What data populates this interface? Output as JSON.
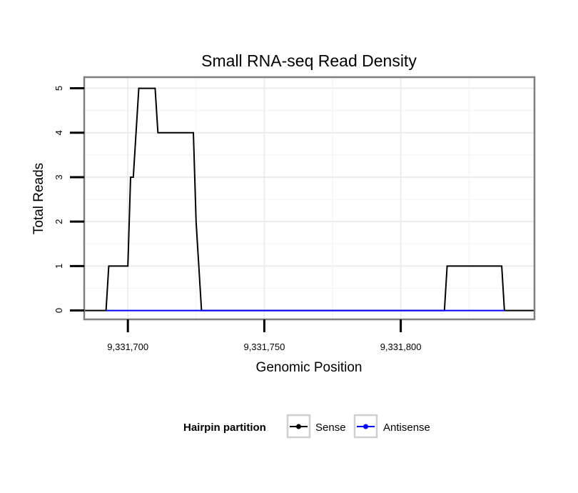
{
  "chart_data": {
    "type": "line",
    "title": "Small RNA-seq Read Density",
    "xlabel": "Genomic Position",
    "ylabel": "Total Reads",
    "xlim": [
      9331684,
      9331849
    ],
    "ylim": [
      -0.2,
      5.25
    ],
    "x_ticks": [
      9331700,
      9331750,
      9331800
    ],
    "x_tick_labels": [
      "9,331,700",
      "9,331,750",
      "9,331,800"
    ],
    "y_ticks": [
      0,
      1,
      2,
      3,
      4,
      5
    ],
    "y_tick_labels": [
      "0",
      "1",
      "2",
      "3",
      "4",
      "5"
    ],
    "grid": true,
    "legend": {
      "title": "Hairpin partition",
      "position": "bottom",
      "entries": [
        "Sense",
        "Antisense"
      ]
    },
    "series": [
      {
        "name": "Sense",
        "color": "#000000",
        "x": [
          9331684,
          9331692,
          9331693,
          9331700,
          9331701,
          9331702,
          9331704,
          9331710,
          9331711,
          9331724,
          9331725,
          9331727,
          9331816,
          9331817,
          9331837,
          9331838,
          9331849
        ],
        "y": [
          0,
          0,
          1,
          1,
          3,
          3,
          5,
          5,
          4,
          4,
          2,
          0,
          0,
          1,
          1,
          0,
          0
        ]
      },
      {
        "name": "Antisense",
        "color": "#0000ff",
        "x": [
          9331692,
          9331727,
          9331816,
          9331838
        ],
        "y": [
          0,
          0,
          0,
          0
        ]
      }
    ]
  }
}
